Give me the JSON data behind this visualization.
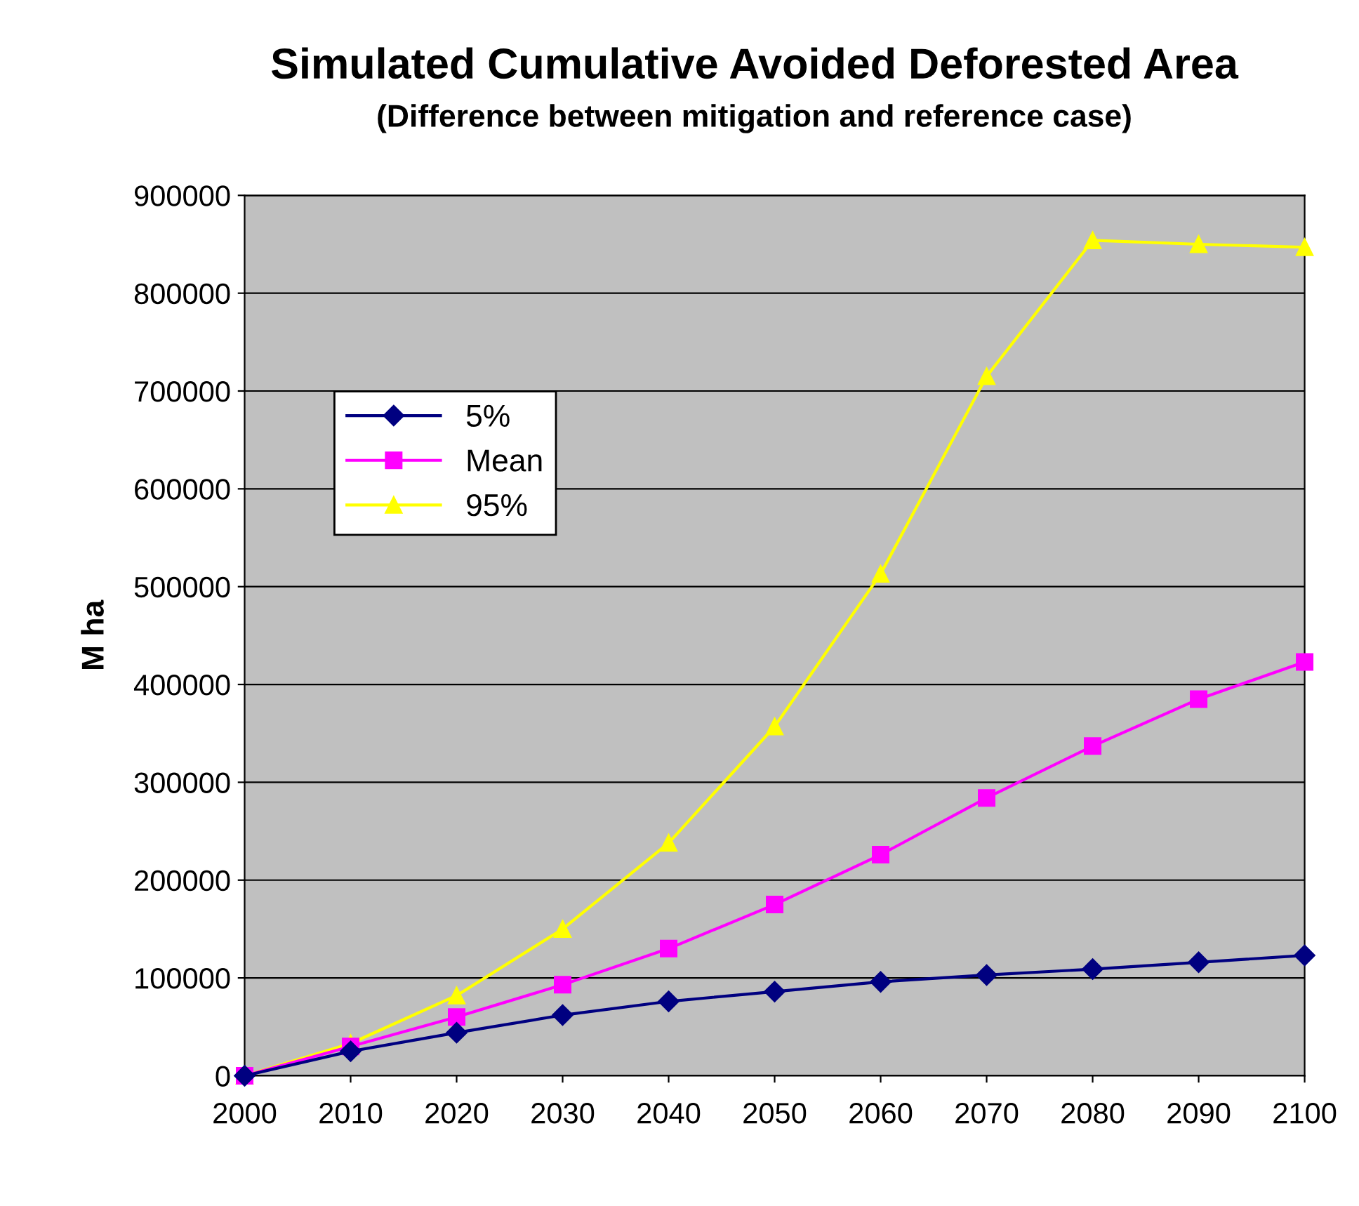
{
  "chart_data": {
    "type": "line",
    "title": "Simulated Cumulative Avoided Deforested Area",
    "subtitle": "(Difference between mitigation and reference case)",
    "ylabel": "M ha",
    "x": [
      2000,
      2010,
      2020,
      2030,
      2040,
      2050,
      2060,
      2070,
      2080,
      2090,
      2100
    ],
    "xlim": [
      2000,
      2100
    ],
    "xticks": [
      2000,
      2010,
      2020,
      2030,
      2040,
      2050,
      2060,
      2070,
      2080,
      2090,
      2100
    ],
    "ylim": [
      0,
      900000
    ],
    "yticks": [
      0,
      100000,
      200000,
      300000,
      400000,
      500000,
      600000,
      700000,
      800000,
      900000
    ],
    "grid": "y",
    "legend": "top left",
    "line_style": "solid",
    "series": [
      {
        "name": "5%",
        "color": "#000080",
        "marker": "diamond",
        "values": [
          0,
          25000,
          44000,
          62000,
          76000,
          86000,
          96000,
          103000,
          109000,
          116000,
          123000
        ]
      },
      {
        "name": "Mean",
        "color": "#ff00ff",
        "marker": "square",
        "values": [
          0,
          30000,
          60000,
          93000,
          130000,
          175000,
          226000,
          284000,
          337000,
          385000,
          423000
        ]
      },
      {
        "name": "95%",
        "color": "#ffff00",
        "marker": "triangle",
        "values": [
          0,
          33000,
          82000,
          150000,
          238000,
          357000,
          513000,
          715000,
          854000,
          850000,
          847000
        ]
      }
    ]
  }
}
